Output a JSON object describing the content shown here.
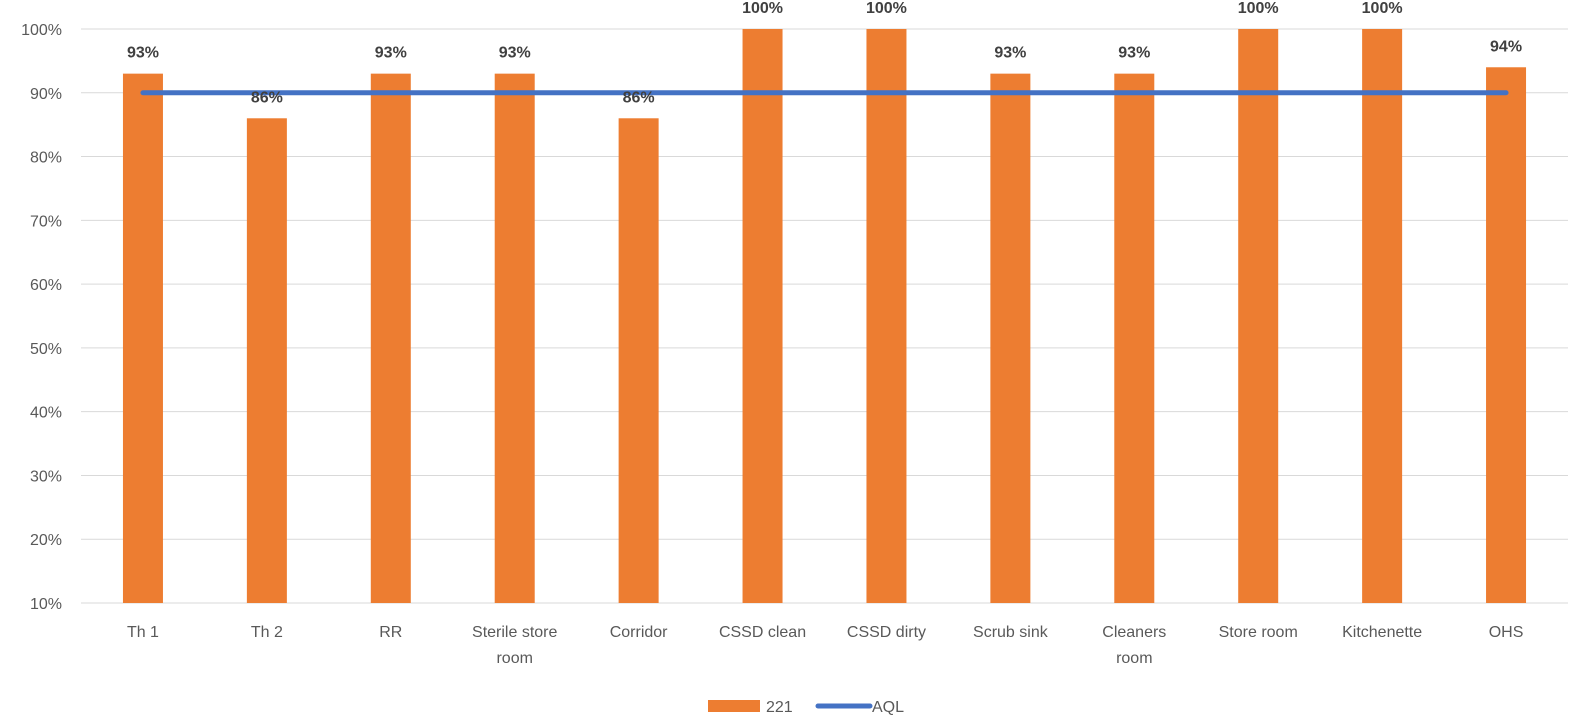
{
  "chart_data": {
    "type": "bar",
    "categories": [
      [
        "Th 1"
      ],
      [
        "Th 2"
      ],
      [
        "RR"
      ],
      [
        "Sterile store",
        "room"
      ],
      [
        "Corridor"
      ],
      [
        "CSSD clean"
      ],
      [
        "CSSD dirty"
      ],
      [
        "Scrub sink"
      ],
      [
        "Cleaners",
        "room"
      ],
      [
        "Store room"
      ],
      [
        "Kitchenette"
      ],
      [
        "OHS"
      ]
    ],
    "series": [
      {
        "name": "221",
        "type": "bar",
        "color": "#ED7D31",
        "values": [
          93,
          86,
          93,
          93,
          86,
          100,
          100,
          93,
          93,
          100,
          100,
          94
        ],
        "labels": [
          "93%",
          "86%",
          "93%",
          "93%",
          "86%",
          "100%",
          "100%",
          "93%",
          "93%",
          "100%",
          "100%",
          "94%"
        ]
      },
      {
        "name": "AQL",
        "type": "line",
        "color": "#4472C4",
        "values": [
          90,
          90,
          90,
          90,
          90,
          90,
          90,
          90,
          90,
          90,
          90,
          90
        ]
      }
    ],
    "ylim": [
      10,
      100
    ],
    "yticks": [
      "10%",
      "20%",
      "30%",
      "40%",
      "50%",
      "60%",
      "70%",
      "80%",
      "90%",
      "100%"
    ],
    "ytick_values": [
      10,
      20,
      30,
      40,
      50,
      60,
      70,
      80,
      90,
      100
    ],
    "grid": true,
    "legend_position": "bottom-center",
    "gridline_color": "#D9D9D9"
  }
}
